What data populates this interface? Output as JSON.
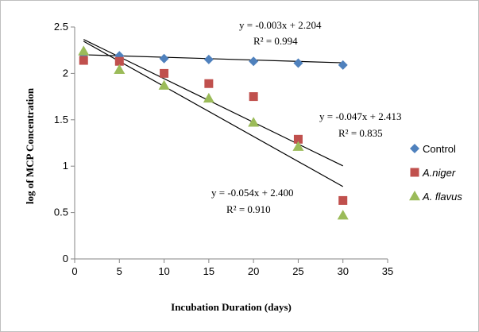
{
  "chart_data": {
    "type": "scatter",
    "title": "",
    "xlabel": "Incubation Duration (days)",
    "ylabel": "log of MCP  Concentration",
    "xlim": [
      0,
      35
    ],
    "ylim": [
      0,
      2.5
    ],
    "xticks": [
      "0",
      "5",
      "10",
      "15",
      "20",
      "25",
      "30",
      "35"
    ],
    "yticks": [
      "0",
      "0.5",
      "1",
      "1.5",
      "2",
      "2.5"
    ],
    "grid": false,
    "legend_position": "right",
    "series": [
      {
        "name": "Control",
        "marker": "diamond",
        "color": "#4f81bd",
        "x": [
          1,
          5,
          10,
          15,
          20,
          25,
          30
        ],
        "y": [
          2.2,
          2.19,
          2.16,
          2.15,
          2.13,
          2.11,
          2.09
        ],
        "trendline": {
          "slope": -0.003,
          "intercept": 2.204
        },
        "equation": "y = -0.003x + 2.204",
        "r2": "R² = 0.994"
      },
      {
        "name": "A.niger",
        "marker": "square",
        "color": "#c0504d",
        "x": [
          1,
          5,
          10,
          15,
          20,
          25,
          30
        ],
        "y": [
          2.14,
          2.13,
          2.0,
          1.89,
          1.75,
          1.29,
          0.63
        ],
        "trendline": {
          "slope": -0.047,
          "intercept": 2.413
        },
        "equation": "y = -0.047x + 2.413",
        "r2": "R² = 0.835"
      },
      {
        "name": "A. flavus",
        "marker": "triangle",
        "color": "#9bbb59",
        "x": [
          1,
          5,
          10,
          15,
          20,
          25,
          30
        ],
        "y": [
          2.24,
          2.04,
          1.87,
          1.73,
          1.47,
          1.21,
          0.47
        ],
        "trendline": {
          "slope": -0.054,
          "intercept": 2.4
        },
        "equation": "y = -0.054x + 2.400",
        "r2": "R² = 0.910"
      }
    ]
  }
}
